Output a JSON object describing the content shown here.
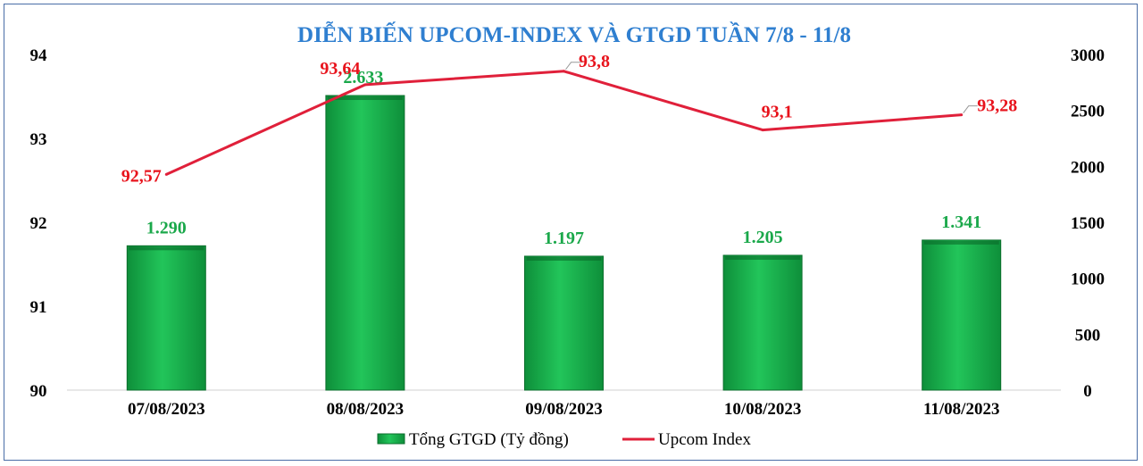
{
  "chart_data": {
    "type": "bar",
    "title": "DIỄN BIẾN UPCOM-INDEX VÀ GTGD TUẦN 7/8 - 11/8",
    "categories": [
      "07/08/2023",
      "08/08/2023",
      "09/08/2023",
      "10/08/2023",
      "11/08/2023"
    ],
    "series": [
      {
        "name": "Tổng GTGD (Tỷ đồng)",
        "type": "bar",
        "axis": "right",
        "values": [
          1290,
          2633,
          1197,
          1205,
          1341
        ],
        "labels": [
          "1.290",
          "2.633",
          "1.197",
          "1.205",
          "1.341"
        ],
        "color": "#16b04a"
      },
      {
        "name": "Upcom Index",
        "type": "line",
        "axis": "left",
        "values": [
          92.57,
          93.64,
          93.8,
          93.1,
          93.28
        ],
        "labels": [
          "92,57",
          "93,64",
          "93,8",
          "93,1",
          "93,28"
        ],
        "color": "#e0203a"
      }
    ],
    "y_left": {
      "min": 90,
      "max": 94,
      "ticks": [
        "90",
        "91",
        "92",
        "93",
        "94"
      ]
    },
    "y_right": {
      "min": 0,
      "max": 3000,
      "ticks": [
        "0",
        "500",
        "1000",
        "1500",
        "2000",
        "2500",
        "3000"
      ]
    },
    "legend_position": "bottom",
    "grid": false
  }
}
